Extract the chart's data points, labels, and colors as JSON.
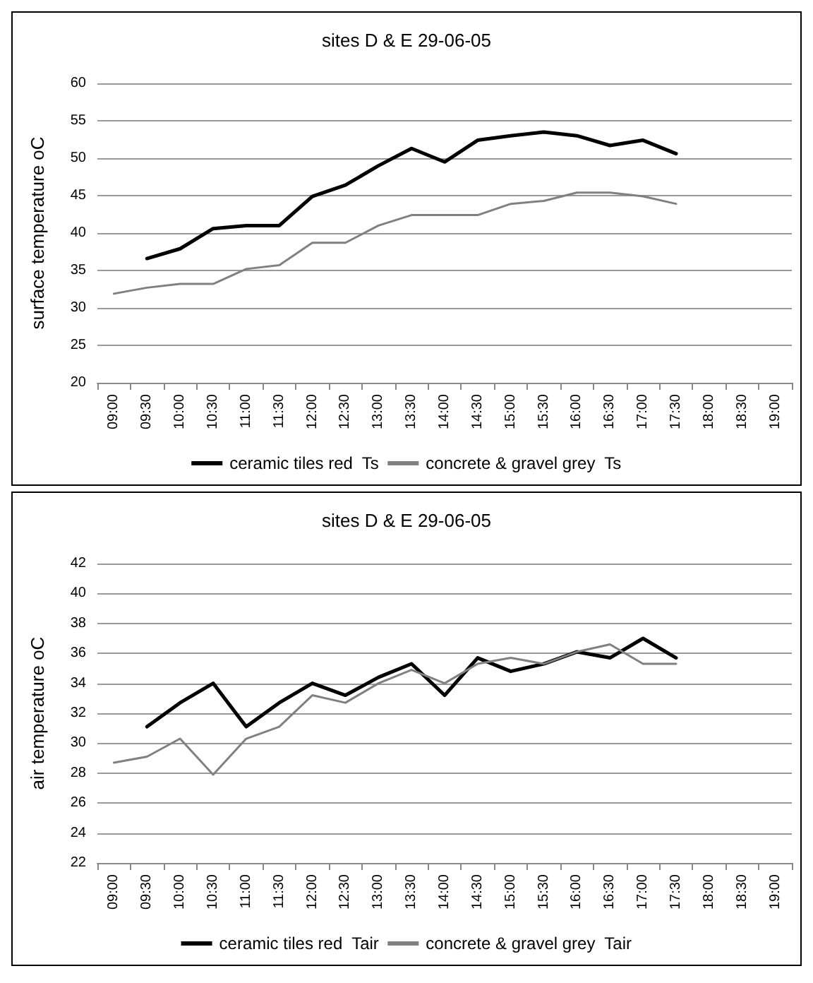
{
  "chart_data": [
    {
      "type": "line",
      "title": "sites D & E 29-06-05",
      "ylabel": "surface temperature oC",
      "categories": [
        "09:00",
        "09:30",
        "10:00",
        "10:30",
        "11:00",
        "11:30",
        "12:00",
        "12:30",
        "13:00",
        "13:30",
        "14:00",
        "14:30",
        "15:00",
        "15:30",
        "16:00",
        "16:30",
        "17:00",
        "17:30",
        "18:00",
        "18:30",
        "19:00"
      ],
      "series": [
        {
          "name": "ceramic tiles red  Ts",
          "color": "#000000",
          "values": [
            null,
            36.6,
            37.9,
            40.6,
            41.0,
            41.0,
            44.9,
            46.4,
            49.0,
            51.3,
            49.5,
            52.4,
            53.0,
            53.5,
            53.0,
            51.7,
            52.4,
            50.6,
            null,
            null,
            null
          ]
        },
        {
          "name": "concrete & gravel grey  Ts",
          "color": "#808080",
          "values": [
            31.9,
            32.7,
            33.2,
            33.2,
            35.2,
            35.7,
            38.7,
            38.7,
            41.0,
            42.4,
            42.4,
            42.4,
            43.9,
            44.3,
            45.4,
            45.4,
            44.9,
            43.9,
            null,
            null,
            null
          ]
        }
      ],
      "ylim": [
        20,
        60
      ],
      "yticks": [
        20,
        25,
        30,
        35,
        40,
        45,
        50,
        55,
        60
      ],
      "grid": "y",
      "legend": "bottom",
      "marker": "none",
      "line_style": "solid"
    },
    {
      "type": "line",
      "title": "sites D & E 29-06-05",
      "ylabel": "air temperature oC",
      "categories": [
        "09:00",
        "09:30",
        "10:00",
        "10:30",
        "11:00",
        "11:30",
        "12:00",
        "12:30",
        "13:00",
        "13:30",
        "14:00",
        "14:30",
        "15:00",
        "15:30",
        "16:00",
        "16:30",
        "17:00",
        "17:30",
        "18:00",
        "18:30",
        "19:00"
      ],
      "series": [
        {
          "name": "ceramic tiles red  Tair",
          "color": "#000000",
          "values": [
            null,
            31.1,
            32.7,
            34.0,
            31.1,
            32.7,
            34.0,
            33.2,
            34.4,
            35.3,
            33.2,
            35.7,
            34.8,
            35.3,
            36.1,
            35.7,
            37.0,
            35.7,
            null,
            null,
            null
          ]
        },
        {
          "name": "concrete & gravel grey  Tair",
          "color": "#808080",
          "values": [
            28.7,
            29.1,
            30.3,
            27.9,
            30.3,
            31.1,
            33.2,
            32.7,
            34.0,
            34.9,
            34.0,
            35.3,
            35.7,
            35.3,
            36.1,
            36.6,
            35.3,
            35.3,
            null,
            null,
            null
          ]
        }
      ],
      "ylim": [
        22,
        42
      ],
      "yticks": [
        22,
        24,
        26,
        28,
        30,
        32,
        34,
        36,
        38,
        40,
        42
      ],
      "grid": "y",
      "legend": "bottom",
      "marker": "none",
      "line_style": "solid"
    }
  ]
}
